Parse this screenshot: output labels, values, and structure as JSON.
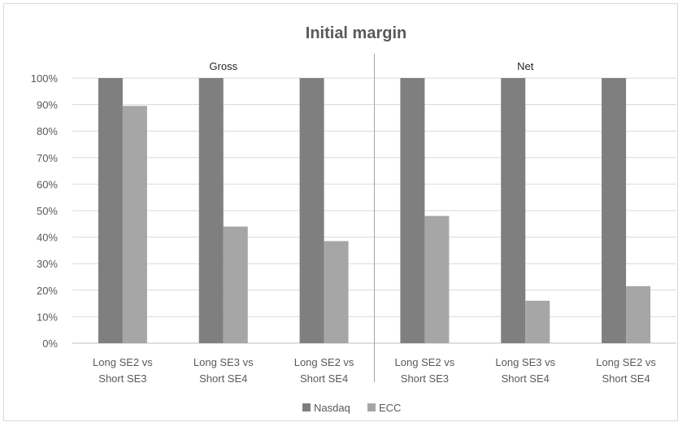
{
  "chart_data": {
    "type": "bar",
    "title": "Initial margin",
    "groups": [
      "Gross",
      "Net"
    ],
    "categories": [
      "Long SE2 vs\nShort SE3",
      "Long SE3 vs\nShort SE4",
      "Long SE2 vs\nShort SE4",
      "Long SE2 vs\nShort SE3",
      "Long SE3 vs\nShort SE4",
      "Long SE2 vs\nShort SE4"
    ],
    "series": [
      {
        "name": "Nasdaq",
        "color": "#7f7f7f",
        "values": [
          100,
          100,
          100,
          100,
          100,
          100
        ]
      },
      {
        "name": "ECC",
        "color": "#a6a6a6",
        "values": [
          89.5,
          44,
          38.5,
          48,
          16,
          21.5
        ]
      }
    ],
    "ylim": [
      0,
      100
    ],
    "yticks": [
      "0%",
      "10%",
      "20%",
      "30%",
      "40%",
      "50%",
      "60%",
      "70%",
      "80%",
      "90%",
      "100%"
    ],
    "grid": true,
    "legend_position": "bottom"
  }
}
